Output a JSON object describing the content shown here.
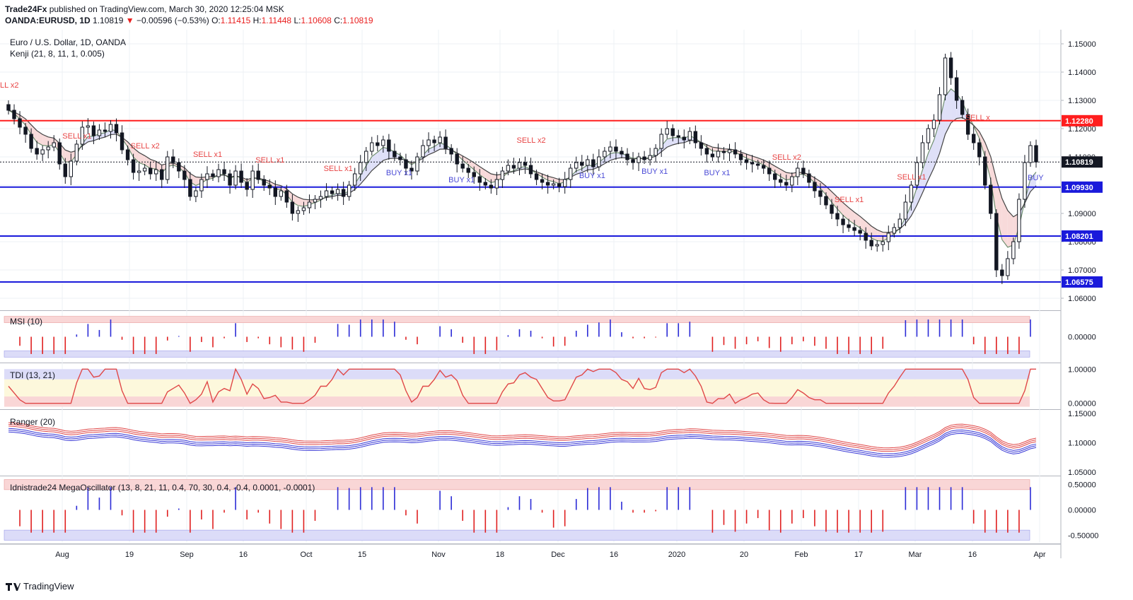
{
  "header": {
    "publisher": "Trade24Fx",
    "published_text": " published on TradingView.com, March 30, 2020 12:25:04 MSK",
    "symbol": "OANDA:EURUSD, 1D",
    "last": "1.10819",
    "change": "−0.00596 (−0.53%)",
    "o_label": "O:",
    "o_value": "1.11415",
    "h_label": "H:",
    "h_value": "1.11448",
    "l_label": "L:",
    "l_value": "1.10608",
    "c_label": "C:",
    "c_value": "1.10819"
  },
  "main_pane": {
    "title": "Euro / U.S. Dollar, 1D, OANDA",
    "indicator": "Kenji (21, 8, 11, 1, 0.005)"
  },
  "colors": {
    "up": "#131722",
    "down": "#131722",
    "resistance": "#ff1e1e",
    "support": "#1a1adb",
    "sell": "#e84545",
    "buy": "#4a4ad6",
    "bull_fill": "#dfe0f8",
    "bear_fill": "#f8dada"
  },
  "chart_data": [
    {
      "type": "candlestick",
      "title": "Euro / U.S. Dollar, 1D, OANDA",
      "ylim": [
        1.056,
        1.155
      ],
      "yticks": [
        "1.06000",
        "1.07000",
        "1.08000",
        "1.09000",
        "1.10000",
        "1.11000",
        "1.12000",
        "1.13000",
        "1.14000",
        "1.15000"
      ],
      "xticks": [
        "Aug",
        "19",
        "Sep",
        "16",
        "Oct",
        "15",
        "Nov",
        "18",
        "Dec",
        "16",
        "2020",
        "20",
        "Feb",
        "17",
        "Mar",
        "16",
        "Apr"
      ],
      "horizontal_levels": [
        {
          "value": 1.1228,
          "label": "1.12280",
          "color": "#ff1e1e"
        },
        {
          "value": 1.0993,
          "label": "1.09930",
          "color": "#1a1adb"
        },
        {
          "value": 1.08201,
          "label": "1.08201",
          "color": "#1a1adb"
        },
        {
          "value": 1.06575,
          "label": "1.06575",
          "color": "#1a1adb"
        }
      ],
      "last_price_label": "1.10819",
      "closes": [
        1.1265,
        1.1235,
        1.1205,
        1.118,
        1.113,
        1.111,
        1.1125,
        1.1135,
        1.115,
        1.1075,
        1.103,
        1.1085,
        1.1145,
        1.1205,
        1.121,
        1.1175,
        1.1195,
        1.119,
        1.1215,
        1.1185,
        1.1125,
        1.109,
        1.1045,
        1.105,
        1.106,
        1.104,
        1.1055,
        1.102,
        1.11,
        1.108,
        1.105,
        1.102,
        1.096,
        1.098,
        1.102,
        1.104,
        1.103,
        1.1055,
        1.104,
        1.1,
        1.105,
        1.101,
        1.0985,
        1.105,
        1.102,
        1.1,
        1.099,
        1.096,
        1.098,
        1.094,
        1.09,
        1.091,
        1.092,
        1.094,
        1.095,
        1.096,
        1.098,
        1.097,
        1.0985,
        1.096,
        1.1,
        1.104,
        1.108,
        1.112,
        1.115,
        1.114,
        1.116,
        1.112,
        1.11,
        1.109,
        1.106,
        1.105,
        1.11,
        1.114,
        1.116,
        1.115,
        1.117,
        1.113,
        1.111,
        1.1075,
        1.106,
        1.1045,
        1.103,
        1.101,
        1.1,
        1.099,
        1.102,
        1.105,
        1.107,
        1.106,
        1.108,
        1.107,
        1.104,
        1.102,
        1.101,
        1.1,
        1.1005,
        1.0995,
        1.102,
        1.106,
        1.108,
        1.107,
        1.109,
        1.1065,
        1.11,
        1.112,
        1.1135,
        1.112,
        1.111,
        1.109,
        1.108,
        1.11,
        1.109,
        1.1105,
        1.113,
        1.118,
        1.12,
        1.1175,
        1.117,
        1.116,
        1.119,
        1.115,
        1.113,
        1.111,
        1.11,
        1.112,
        1.1115,
        1.1125,
        1.111,
        1.109,
        1.108,
        1.1075,
        1.107,
        1.106,
        1.104,
        1.102,
        1.101,
        1.1,
        1.103,
        1.106,
        1.104,
        1.101,
        1.098,
        1.096,
        1.093,
        1.09,
        1.088,
        1.086,
        1.085,
        1.084,
        1.083,
        1.0805,
        1.0785,
        1.079,
        1.08,
        1.083,
        1.085,
        1.088,
        1.094,
        1.1,
        1.108,
        1.115,
        1.12,
        1.123,
        1.132,
        1.145,
        1.138,
        1.13,
        1.125,
        1.118,
        1.115,
        1.11,
        1.1,
        1.09,
        1.07,
        1.068,
        1.074,
        1.08,
        1.095,
        1.108,
        1.114,
        1.1082
      ],
      "series": [
        {
          "name": "",
          "kind": "channel-upper"
        },
        {
          "name": "",
          "kind": "channel-lower"
        }
      ],
      "signals": [
        {
          "label": "LL x2",
          "type": "sell"
        },
        {
          "label": "SELL x1",
          "type": "sell"
        },
        {
          "label": "SELL x2",
          "type": "sell"
        },
        {
          "label": "SELL x1",
          "type": "sell"
        },
        {
          "label": "SELL x1",
          "type": "sell"
        },
        {
          "label": "SELL x1",
          "type": "sell"
        },
        {
          "label": "BUY x1",
          "type": "buy"
        },
        {
          "label": "BUY x1",
          "type": "buy"
        },
        {
          "label": "SELL x2",
          "type": "sell"
        },
        {
          "label": "BUY x1",
          "type": "buy"
        },
        {
          "label": "BUY x1",
          "type": "buy"
        },
        {
          "label": "BUY x1",
          "type": "buy"
        },
        {
          "label": "SELL x2",
          "type": "sell"
        },
        {
          "label": "SELL x1",
          "type": "sell"
        },
        {
          "label": "SELL x1",
          "type": "sell"
        },
        {
          "label": "SELL x",
          "type": "sell"
        },
        {
          "label": "BUY",
          "type": "buy"
        }
      ]
    },
    {
      "type": "histogram",
      "title": "MSI (10)",
      "ylim": [
        -0.8,
        0.8
      ],
      "yticks": [
        "0.00000"
      ]
    },
    {
      "type": "line",
      "title": "TDI (13, 21)",
      "ylim": [
        -0.15,
        1.15
      ],
      "yticks": [
        "1.00000",
        "0.00000"
      ]
    },
    {
      "type": "line",
      "title": "Ranger (20)",
      "ylim": [
        1.045,
        1.155
      ],
      "yticks": [
        "1.15000",
        "1.10000",
        "1.05000"
      ]
    },
    {
      "type": "histogram",
      "title": "Idnistrade24 MegaOscillator (13, 8, 21, 11, 0.4, 70, 30, 0.4, -0.4, 0.0001, -0.0001)",
      "ylim": [
        -0.65,
        0.65
      ],
      "yticks": [
        "0.50000",
        "0.00000",
        "-0.50000"
      ]
    }
  ],
  "footer": {
    "brand": "TradingView"
  }
}
